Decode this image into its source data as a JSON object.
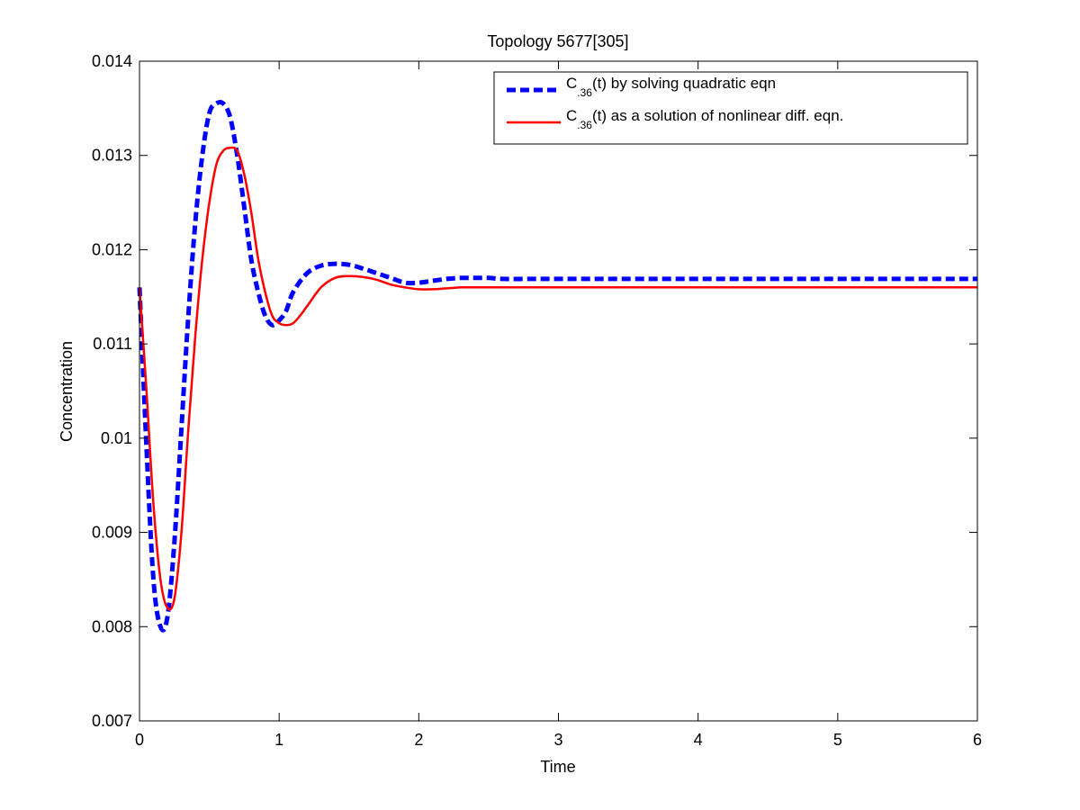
{
  "chart_data": {
    "type": "line",
    "title": "Topology 5677[305]",
    "xlabel": "Time",
    "ylabel": "Concentration",
    "xlim": [
      0,
      6
    ],
    "ylim": [
      0.007,
      0.014
    ],
    "x_ticks": [
      "0",
      "1",
      "2",
      "3",
      "4",
      "5",
      "6"
    ],
    "y_ticks": [
      "0.007",
      "0.008",
      "0.009",
      "0.01",
      "0.011",
      "0.012",
      "0.013",
      "0.014"
    ],
    "x_tick_values": [
      0,
      1,
      2,
      3,
      4,
      5,
      6
    ],
    "y_tick_values": [
      0.007,
      0.008,
      0.009,
      0.01,
      0.011,
      0.012,
      0.013,
      0.014
    ],
    "grid": false,
    "legend_position": "top-right",
    "series": [
      {
        "legend": {
          "prefix": "C",
          "subscript": ".36",
          "suffix": "(t) by solving quadratic eqn"
        },
        "color": "#0000ff",
        "style": "dashed",
        "x": [
          0,
          0.05,
          0.1,
          0.15,
          0.2,
          0.25,
          0.3,
          0.35,
          0.4,
          0.45,
          0.5,
          0.55,
          0.6,
          0.65,
          0.7,
          0.75,
          0.8,
          0.85,
          0.9,
          0.95,
          1.0,
          1.05,
          1.1,
          1.2,
          1.3,
          1.4,
          1.5,
          1.6,
          1.7,
          1.8,
          1.9,
          2.0,
          2.1,
          2.2,
          2.3,
          2.4,
          2.5,
          2.6,
          2.8,
          3.0,
          3.5,
          4.0,
          4.5,
          5.0,
          5.5,
          6.0
        ],
        "y": [
          0.0116,
          0.0099,
          0.0085,
          0.008,
          0.0081,
          0.0089,
          0.0101,
          0.0113,
          0.0123,
          0.013,
          0.01345,
          0.01355,
          0.01355,
          0.0134,
          0.013,
          0.01245,
          0.0119,
          0.01155,
          0.0113,
          0.0112,
          0.01125,
          0.01135,
          0.01155,
          0.01175,
          0.01183,
          0.01185,
          0.01184,
          0.0118,
          0.01175,
          0.0117,
          0.01165,
          0.01165,
          0.01167,
          0.01169,
          0.0117,
          0.0117,
          0.0117,
          0.01169,
          0.01169,
          0.01169,
          0.01169,
          0.01169,
          0.01169,
          0.01169,
          0.01169,
          0.01169
        ]
      },
      {
        "legend": {
          "prefix": "C",
          "subscript": ".36",
          "suffix": "(t) as a solution of nonlinear diff. eqn."
        },
        "color": "#ff0000",
        "style": "solid",
        "x": [
          0,
          0.05,
          0.1,
          0.15,
          0.2,
          0.25,
          0.3,
          0.35,
          0.4,
          0.45,
          0.5,
          0.55,
          0.6,
          0.65,
          0.7,
          0.75,
          0.8,
          0.85,
          0.9,
          0.95,
          1.0,
          1.05,
          1.1,
          1.15,
          1.2,
          1.3,
          1.4,
          1.5,
          1.6,
          1.7,
          1.8,
          1.9,
          2.0,
          2.1,
          2.2,
          2.3,
          2.4,
          2.5,
          2.6,
          2.8,
          3.0,
          3.5,
          4.0,
          4.5,
          5.0,
          5.5,
          6.0
        ],
        "y": [
          0.0116,
          0.0105,
          0.0093,
          0.0085,
          0.0082,
          0.0083,
          0.009,
          0.0101,
          0.0111,
          0.0119,
          0.0125,
          0.0129,
          0.01305,
          0.01308,
          0.01305,
          0.0128,
          0.0124,
          0.0119,
          0.01155,
          0.0113,
          0.01122,
          0.0112,
          0.01122,
          0.0113,
          0.0114,
          0.0116,
          0.0117,
          0.01172,
          0.01171,
          0.01168,
          0.01163,
          0.0116,
          0.01158,
          0.01158,
          0.01159,
          0.0116,
          0.0116,
          0.0116,
          0.0116,
          0.0116,
          0.0116,
          0.0116,
          0.0116,
          0.0116,
          0.0116,
          0.0116,
          0.0116
        ]
      }
    ]
  }
}
